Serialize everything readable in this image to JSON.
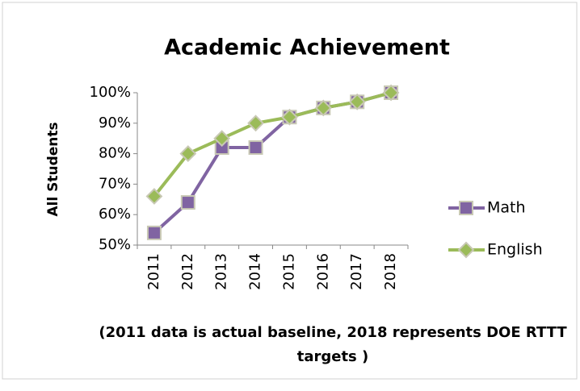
{
  "chart_data": {
    "type": "line",
    "title": "Academic Achievement",
    "y_label": "All Students",
    "x_label": "(2011 data is actual baseline, 2018 represents DOE RTTT targets )",
    "categories": [
      "2011",
      "2012",
      "2013",
      "2014",
      "2015",
      "2016",
      "2017",
      "2018"
    ],
    "series": [
      {
        "name": "Math",
        "color": "#8064a2",
        "marker": "square",
        "values": [
          54,
          64,
          82,
          82,
          92,
          95,
          97,
          100
        ]
      },
      {
        "name": "English",
        "color": "#9bbb59",
        "marker": "diamond",
        "values": [
          66,
          80,
          85,
          90,
          92,
          95,
          97,
          100
        ]
      }
    ],
    "ylim": [
      50,
      100
    ],
    "yticks": [
      {
        "value": 50,
        "label": "50%"
      },
      {
        "value": 60,
        "label": "60%"
      },
      {
        "value": 70,
        "label": "70%"
      },
      {
        "value": 80,
        "label": "80%"
      },
      {
        "value": 90,
        "label": "90%"
      },
      {
        "value": 100,
        "label": "100%"
      }
    ],
    "grid": false,
    "legend": "right"
  }
}
